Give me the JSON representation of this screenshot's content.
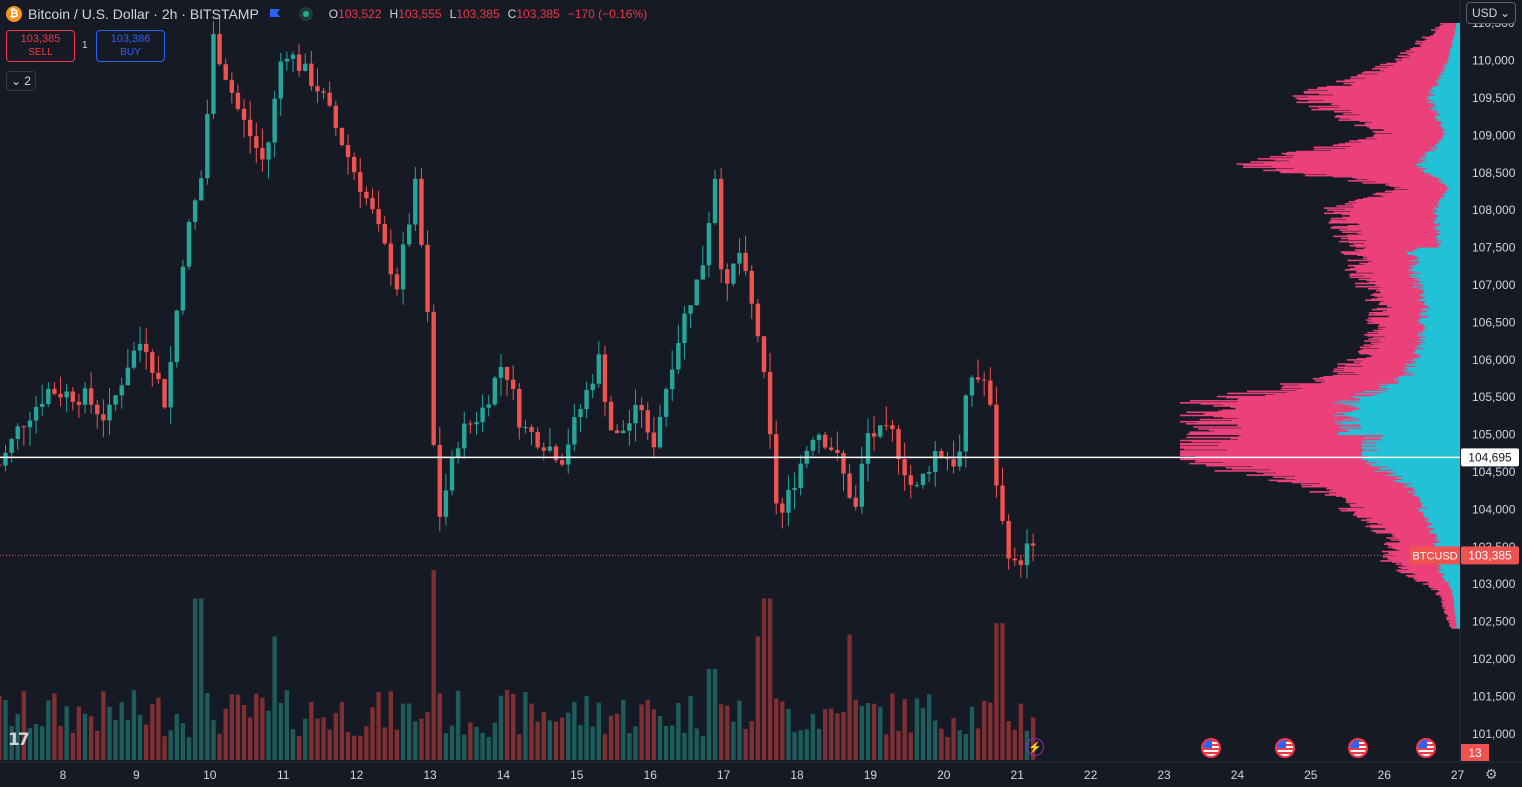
{
  "header": {
    "symbol_title": "Bitcoin / U.S. Dollar · 2h · BITSTAMP",
    "open_label": "O",
    "open": "103,522",
    "high_label": "H",
    "high": "103,555",
    "low_label": "L",
    "low": "103,385",
    "close_label": "C",
    "close": "103,385",
    "change": "−170 (−0.16%)"
  },
  "trade": {
    "sell_price": "103,385",
    "sell_label": "SELL",
    "spread": "1",
    "buy_price": "103,386",
    "buy_label": "BUY"
  },
  "indicators_toggle": "2",
  "currency": "USD",
  "price_tags": {
    "last_price": "103,385",
    "ticker": "BTCUSD",
    "hline_price": "104,695",
    "bars_counter": "13"
  },
  "colors": {
    "background": "#161a25",
    "up": "#26a69a",
    "down": "#ef5350",
    "volume_up": "#1d5c5a",
    "volume_down": "#7d2f33",
    "profile_up": "#22c2d6",
    "profile_down": "#ec407a",
    "hline": "#ffffff"
  },
  "chart_data": {
    "type": "candlestick",
    "timeframe": "2h",
    "ylim": [
      100700,
      110800
    ],
    "y_ticks": [
      101000,
      101500,
      102000,
      102500,
      103000,
      103500,
      104000,
      104500,
      105000,
      105500,
      106000,
      106500,
      107000,
      107500,
      108000,
      108500,
      109000,
      109500,
      110000,
      110500
    ],
    "y_tick_labels": [
      "101,000",
      "101,500",
      "102,000",
      "102,500",
      "103,000",
      "103,500",
      "104,000",
      "104,500",
      "105,000",
      "105,500",
      "106,000",
      "106,500",
      "107,000",
      "107,500",
      "108,000",
      "108,500",
      "109,000",
      "109,500",
      "110,000",
      "110,500"
    ],
    "x_ticks": [
      "8",
      "9",
      "10",
      "11",
      "12",
      "13",
      "14",
      "15",
      "16",
      "17",
      "18",
      "19",
      "20",
      "21",
      "22",
      "23",
      "24",
      "25",
      "26",
      "27"
    ],
    "horizontal_line": 104695,
    "last_price": 103385,
    "price_keypoints": [
      {
        "day": 7.15,
        "price": 104600
      },
      {
        "day": 7.4,
        "price": 105100
      },
      {
        "day": 7.8,
        "price": 105600
      },
      {
        "day": 8.3,
        "price": 105500
      },
      {
        "day": 8.6,
        "price": 105200
      },
      {
        "day": 8.9,
        "price": 106000
      },
      {
        "day": 9.1,
        "price": 106300
      },
      {
        "day": 9.4,
        "price": 105400
      },
      {
        "day": 9.65,
        "price": 107500
      },
      {
        "day": 9.9,
        "price": 108500
      },
      {
        "day": 10.05,
        "price": 110300
      },
      {
        "day": 10.4,
        "price": 109300
      },
      {
        "day": 10.75,
        "price": 108600
      },
      {
        "day": 11.0,
        "price": 110200
      },
      {
        "day": 11.5,
        "price": 109600
      },
      {
        "day": 11.85,
        "price": 108800
      },
      {
        "day": 12.2,
        "price": 108000
      },
      {
        "day": 12.55,
        "price": 107000
      },
      {
        "day": 12.8,
        "price": 108300
      },
      {
        "day": 12.95,
        "price": 106900
      },
      {
        "day": 13.1,
        "price": 103800
      },
      {
        "day": 13.4,
        "price": 105000
      },
      {
        "day": 13.7,
        "price": 105300
      },
      {
        "day": 14.0,
        "price": 106000
      },
      {
        "day": 14.25,
        "price": 105100
      },
      {
        "day": 14.55,
        "price": 104900
      },
      {
        "day": 14.8,
        "price": 104700
      },
      {
        "day": 15.3,
        "price": 106000
      },
      {
        "day": 15.5,
        "price": 104900
      },
      {
        "day": 15.9,
        "price": 105400
      },
      {
        "day": 16.0,
        "price": 104700
      },
      {
        "day": 16.3,
        "price": 106000
      },
      {
        "day": 16.5,
        "price": 106700
      },
      {
        "day": 16.7,
        "price": 107200
      },
      {
        "day": 16.9,
        "price": 108600
      },
      {
        "day": 17.0,
        "price": 106700
      },
      {
        "day": 17.2,
        "price": 107500
      },
      {
        "day": 17.5,
        "price": 106200
      },
      {
        "day": 17.75,
        "price": 103800
      },
      {
        "day": 18.0,
        "price": 104500
      },
      {
        "day": 18.25,
        "price": 105100
      },
      {
        "day": 18.5,
        "price": 104800
      },
      {
        "day": 18.8,
        "price": 104000
      },
      {
        "day": 18.95,
        "price": 105000
      },
      {
        "day": 19.3,
        "price": 105000
      },
      {
        "day": 19.6,
        "price": 104200
      },
      {
        "day": 19.9,
        "price": 104800
      },
      {
        "day": 20.2,
        "price": 104600
      },
      {
        "day": 20.35,
        "price": 105800
      },
      {
        "day": 20.6,
        "price": 105700
      },
      {
        "day": 20.75,
        "price": 104000
      },
      {
        "day": 20.95,
        "price": 103200
      },
      {
        "day": 21.15,
        "price": 103500
      },
      {
        "day": 21.25,
        "price": 103385
      }
    ],
    "volume_spikes": [
      {
        "day": 9.85,
        "rel": 0.85
      },
      {
        "day": 10.9,
        "rel": 0.65
      },
      {
        "day": 13.05,
        "rel": 1.0
      },
      {
        "day": 16.85,
        "rel": 0.48
      },
      {
        "day": 17.6,
        "rel": 0.85
      },
      {
        "day": 17.45,
        "rel": 0.65
      },
      {
        "day": 18.75,
        "rel": 0.66
      },
      {
        "day": 20.75,
        "rel": 0.72
      }
    ],
    "volume_profile": {
      "poc_price": 104695,
      "levels": [
        {
          "price": 102400,
          "total": 0.03
        },
        {
          "price": 102900,
          "total": 0.08
        },
        {
          "price": 103300,
          "total": 0.25
        },
        {
          "price": 103600,
          "total": 0.24
        },
        {
          "price": 104000,
          "total": 0.38
        },
        {
          "price": 104400,
          "total": 0.62
        },
        {
          "price": 104700,
          "total": 1.0
        },
        {
          "price": 105000,
          "total": 0.9
        },
        {
          "price": 105400,
          "total": 0.93
        },
        {
          "price": 105800,
          "total": 0.42
        },
        {
          "price": 106200,
          "total": 0.32
        },
        {
          "price": 106700,
          "total": 0.28
        },
        {
          "price": 107100,
          "total": 0.35
        },
        {
          "price": 107600,
          "total": 0.39
        },
        {
          "price": 108000,
          "total": 0.45
        },
        {
          "price": 108300,
          "total": 0.2
        },
        {
          "price": 108600,
          "total": 0.74
        },
        {
          "price": 109000,
          "total": 0.27
        },
        {
          "price": 109500,
          "total": 0.55
        },
        {
          "price": 110000,
          "total": 0.22
        },
        {
          "price": 110500,
          "total": 0.06
        }
      ]
    },
    "event_markers": [
      "23.6",
      "24.6",
      "25.6",
      "26.6"
    ]
  }
}
